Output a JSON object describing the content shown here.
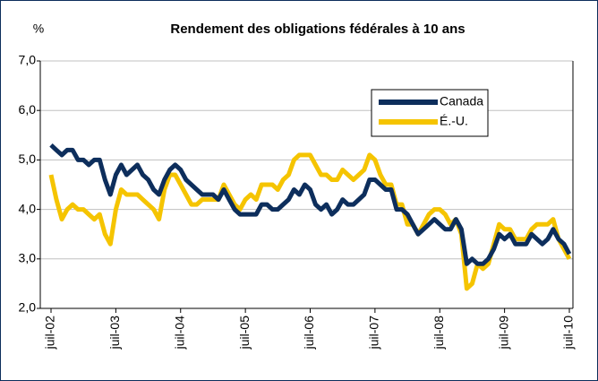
{
  "chart_data": {
    "type": "line",
    "title": "Rendement des obligations fédérales à 10 ans",
    "y_label": "%",
    "categories": [
      "juil-02",
      null,
      null,
      null,
      null,
      null,
      null,
      null,
      null,
      null,
      null,
      null,
      "juil-03",
      null,
      null,
      null,
      null,
      null,
      null,
      null,
      null,
      null,
      null,
      null,
      "juil-04",
      null,
      null,
      null,
      null,
      null,
      null,
      null,
      null,
      null,
      null,
      null,
      "juil-05",
      null,
      null,
      null,
      null,
      null,
      null,
      null,
      null,
      null,
      null,
      null,
      "juil-06",
      null,
      null,
      null,
      null,
      null,
      null,
      null,
      null,
      null,
      null,
      null,
      "juil-07",
      null,
      null,
      null,
      null,
      null,
      null,
      null,
      null,
      null,
      null,
      null,
      "juil-08",
      null,
      null,
      null,
      null,
      null,
      null,
      null,
      null,
      null,
      null,
      null,
      "juil-09",
      null,
      null,
      null,
      null,
      null,
      null,
      null,
      null,
      null,
      null,
      null,
      "juil-10"
    ],
    "series": [
      {
        "name": "Canada",
        "color": "#0d2e5c",
        "values": [
          5.3,
          5.2,
          5.1,
          5.2,
          5.2,
          5.0,
          5.0,
          4.9,
          5.0,
          5.0,
          4.6,
          4.3,
          4.7,
          4.9,
          4.7,
          4.8,
          4.9,
          4.7,
          4.6,
          4.4,
          4.3,
          4.6,
          4.8,
          4.9,
          4.8,
          4.6,
          4.5,
          4.4,
          4.3,
          4.3,
          4.3,
          4.2,
          4.4,
          4.2,
          4.0,
          3.9,
          3.9,
          3.9,
          3.9,
          4.1,
          4.1,
          4.0,
          4.0,
          4.1,
          4.2,
          4.4,
          4.3,
          4.5,
          4.4,
          4.1,
          4.0,
          4.1,
          3.9,
          4.0,
          4.2,
          4.1,
          4.1,
          4.2,
          4.3,
          4.6,
          4.6,
          4.5,
          4.4,
          4.4,
          4.0,
          4.0,
          3.9,
          3.7,
          3.5,
          3.6,
          3.7,
          3.8,
          3.7,
          3.6,
          3.6,
          3.8,
          3.6,
          2.9,
          3.0,
          2.9,
          2.9,
          3.0,
          3.2,
          3.5,
          3.4,
          3.5,
          3.3,
          3.3,
          3.3,
          3.5,
          3.4,
          3.3,
          3.4,
          3.6,
          3.4,
          3.3,
          3.1
        ]
      },
      {
        "name": "É.-U.",
        "color": "#f5c400",
        "values": [
          4.7,
          4.2,
          3.8,
          4.0,
          4.1,
          4.0,
          4.0,
          3.9,
          3.8,
          3.9,
          3.5,
          3.3,
          4.0,
          4.4,
          4.3,
          4.3,
          4.3,
          4.2,
          4.1,
          4.0,
          3.8,
          4.4,
          4.7,
          4.7,
          4.5,
          4.3,
          4.1,
          4.1,
          4.2,
          4.2,
          4.2,
          4.2,
          4.5,
          4.3,
          4.1,
          4.0,
          4.2,
          4.3,
          4.2,
          4.5,
          4.5,
          4.5,
          4.4,
          4.6,
          4.7,
          5.0,
          5.1,
          5.1,
          5.1,
          4.9,
          4.7,
          4.7,
          4.6,
          4.6,
          4.8,
          4.7,
          4.6,
          4.7,
          4.8,
          5.1,
          5.0,
          4.7,
          4.5,
          4.5,
          4.1,
          4.1,
          3.7,
          3.7,
          3.5,
          3.7,
          3.9,
          4.0,
          4.0,
          3.9,
          3.7,
          3.8,
          3.5,
          2.4,
          2.5,
          2.9,
          2.8,
          2.9,
          3.3,
          3.7,
          3.6,
          3.6,
          3.4,
          3.4,
          3.4,
          3.6,
          3.7,
          3.7,
          3.7,
          3.8,
          3.4,
          3.2,
          3.0
        ]
      }
    ],
    "ylim": [
      2,
      7
    ],
    "yticks": [
      {
        "value": 2,
        "label": "2,0"
      },
      {
        "value": 3,
        "label": "3,0"
      },
      {
        "value": 4,
        "label": "4,0"
      },
      {
        "value": 5,
        "label": "5,0"
      },
      {
        "value": 6,
        "label": "6,0"
      },
      {
        "value": 7,
        "label": "7,0"
      }
    ],
    "grid": true,
    "legend": "upper right"
  }
}
